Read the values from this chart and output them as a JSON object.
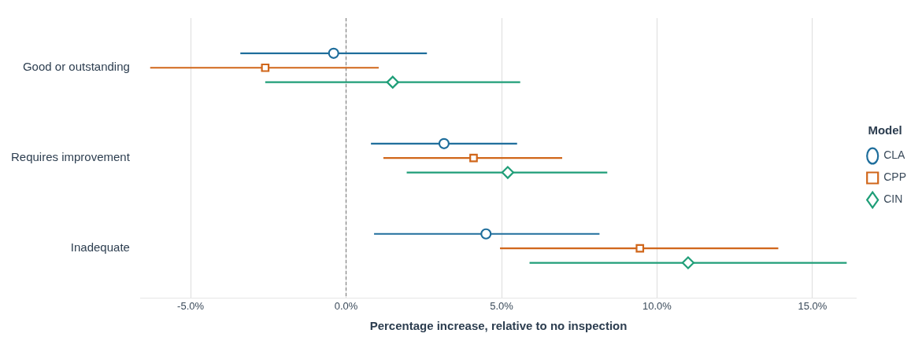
{
  "chart_data": {
    "type": "scatter",
    "orientation": "horizontal",
    "xlabel": "Percentage increase, relative to no inspection",
    "legend_title": "Model",
    "legend": "right",
    "grid": "x",
    "xlim": [
      -6.6,
      16.4
    ],
    "categories": [
      "Good or outstanding",
      "Requires improvement",
      "Inadequate"
    ],
    "xticks": [
      {
        "value": -5,
        "label": "-5.0%"
      },
      {
        "value": 0,
        "label": "0.0%"
      },
      {
        "value": 5,
        "label": "5.0%"
      },
      {
        "value": 10,
        "label": "10.0%"
      },
      {
        "value": 15,
        "label": "15.0%"
      }
    ],
    "ref_lines": [
      {
        "axis": "x",
        "value": 0,
        "color": "#888888",
        "line_style": "dashed"
      }
    ],
    "series": [
      {
        "name": "CLA",
        "color": "#1f6e9c",
        "marker": "circle",
        "values": [
          -0.4,
          3.15,
          4.5
        ],
        "errors": [
          [
            -3.4,
            2.6
          ],
          [
            0.8,
            5.5
          ],
          [
            0.9,
            8.15
          ]
        ]
      },
      {
        "name": "CPP",
        "color": "#d0661a",
        "marker": "square",
        "values": [
          -2.6,
          4.1,
          9.45
        ],
        "errors": [
          [
            -6.3,
            1.05
          ],
          [
            1.2,
            6.95
          ],
          [
            4.95,
            13.9
          ]
        ]
      },
      {
        "name": "CIN",
        "color": "#1f9e78",
        "marker": "diamond",
        "values": [
          1.5,
          5.2,
          11.0
        ],
        "errors": [
          [
            -2.6,
            5.6
          ],
          [
            1.95,
            8.4
          ],
          [
            5.9,
            16.1
          ]
        ]
      }
    ]
  }
}
